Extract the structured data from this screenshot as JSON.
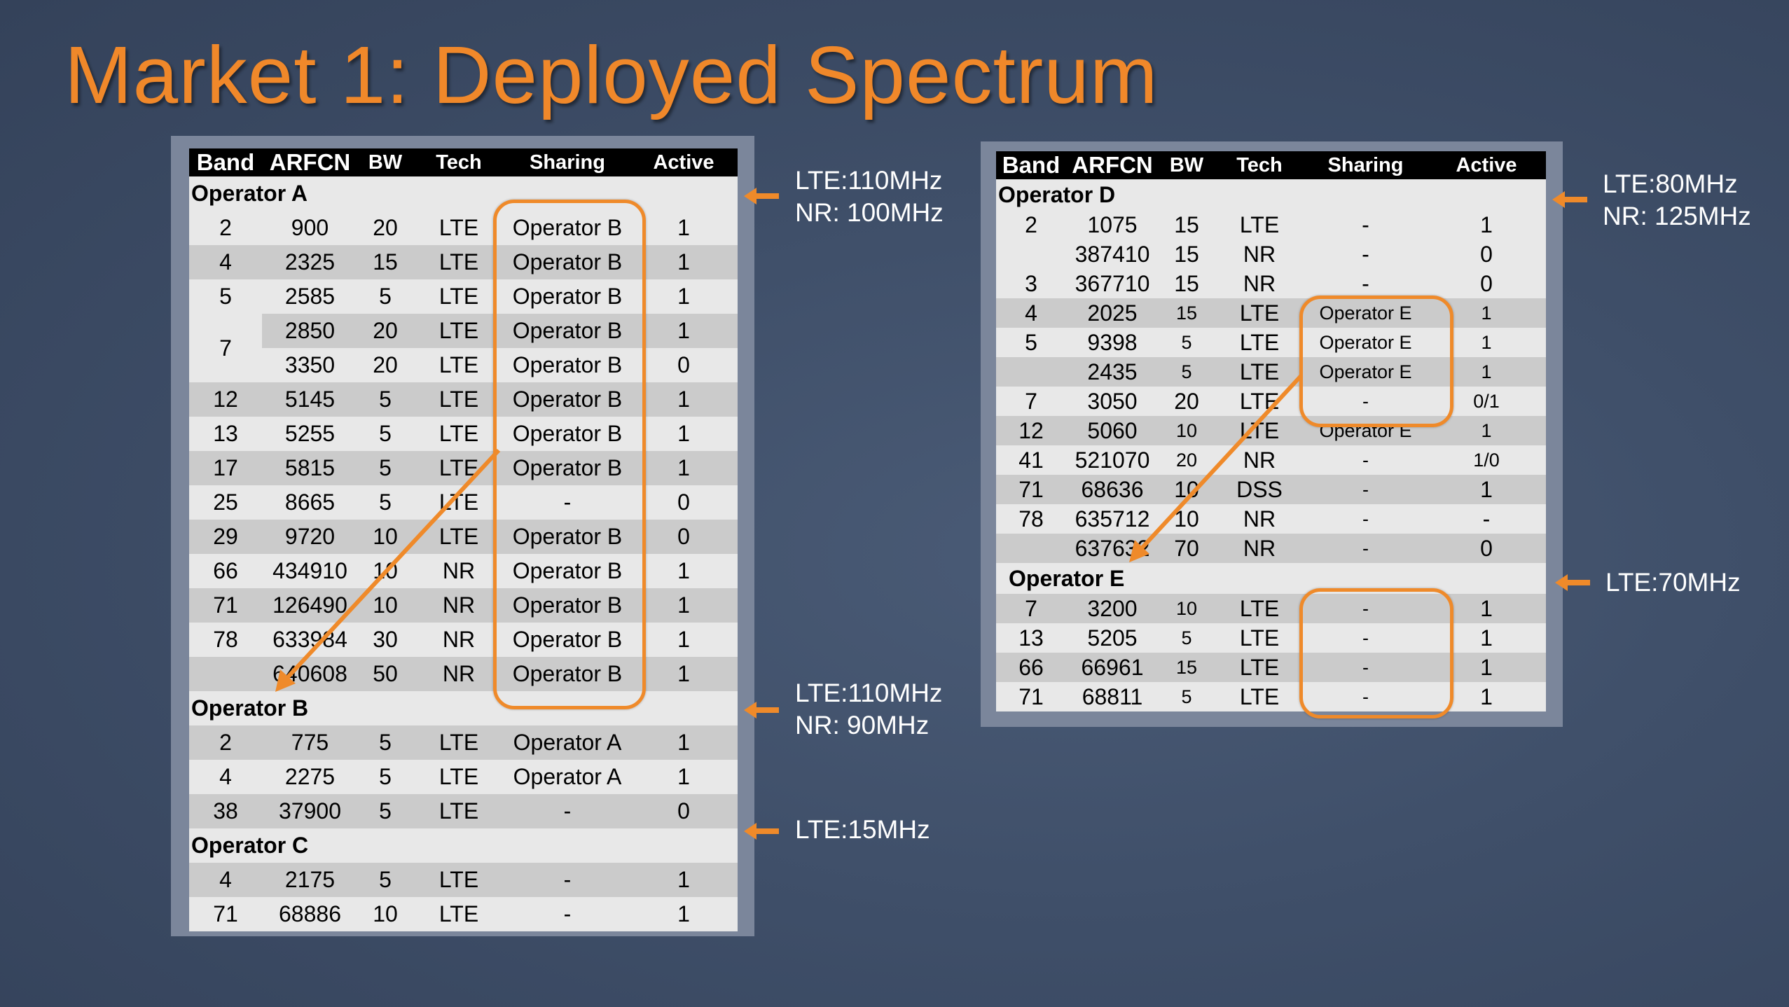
{
  "title": "Market 1: Deployed Spectrum",
  "colors": {
    "accent": "#f0882a",
    "background": "#3f4f69",
    "row_dark": "#cbcbcb",
    "row_light": "#e8e8e8"
  },
  "headers": [
    "Band",
    "ARFCN",
    "BW",
    "Tech",
    "Sharing",
    "Active"
  ],
  "left_table": {
    "operator_a": {
      "name": "Operator A",
      "rows": [
        [
          "2",
          "900",
          "20",
          "LTE",
          "Operator B",
          "1"
        ],
        [
          "4",
          "2325",
          "15",
          "LTE",
          "Operator B",
          "1"
        ],
        [
          "5",
          "2585",
          "5",
          "LTE",
          "Operator B",
          "1"
        ],
        [
          "7",
          "2850",
          "20",
          "LTE",
          "Operator B",
          "1"
        ],
        [
          "",
          "3350",
          "20",
          "LTE",
          "Operator B",
          "0"
        ],
        [
          "12",
          "5145",
          "5",
          "LTE",
          "Operator B",
          "1"
        ],
        [
          "13",
          "5255",
          "5",
          "LTE",
          "Operator B",
          "1"
        ],
        [
          "17",
          "5815",
          "5",
          "LTE",
          "Operator B",
          "1"
        ],
        [
          "25",
          "8665",
          "5",
          "LTE",
          "-",
          "0"
        ],
        [
          "29",
          "9720",
          "10",
          "LTE",
          "Operator B",
          "0"
        ],
        [
          "66",
          "434910",
          "10",
          "NR",
          "Operator B",
          "1"
        ],
        [
          "71",
          "126490",
          "10",
          "NR",
          "Operator B",
          "1"
        ],
        [
          "78",
          "633984",
          "30",
          "NR",
          "Operator B",
          "1"
        ],
        [
          "",
          "640608",
          "50",
          "NR",
          "Operator B",
          "1"
        ]
      ]
    },
    "operator_b": {
      "name": "Operator B",
      "rows": [
        [
          "2",
          "775",
          "5",
          "LTE",
          "Operator A",
          "1"
        ],
        [
          "4",
          "2275",
          "5",
          "LTE",
          "Operator A",
          "1"
        ],
        [
          "38",
          "37900",
          "5",
          "LTE",
          "-",
          "0"
        ]
      ]
    },
    "operator_c": {
      "name": "Operator C",
      "rows": [
        [
          "4",
          "2175",
          "5",
          "LTE",
          "-",
          "1"
        ],
        [
          "71",
          "68886",
          "10",
          "LTE",
          "-",
          "1"
        ]
      ]
    }
  },
  "right_table": {
    "operator_d": {
      "name": "Operator D",
      "rows": [
        [
          "2",
          "1075",
          "15",
          "LTE",
          "-",
          "1"
        ],
        [
          "",
          "387410",
          "15",
          "NR",
          "-",
          "0"
        ],
        [
          "3",
          "367710",
          "15",
          "NR",
          "-",
          "0"
        ],
        [
          "4",
          "2025",
          "15",
          "LTE",
          "Operator E",
          "1"
        ],
        [
          "5",
          "9398",
          "5",
          "LTE",
          "Operator E",
          "1"
        ],
        [
          "",
          "2435",
          "5",
          "LTE",
          "Operator E",
          "1"
        ],
        [
          "7",
          "3050",
          "20",
          "LTE",
          "-",
          "0/1"
        ],
        [
          "12",
          "5060",
          "10",
          "LTE",
          "Operator E",
          "1"
        ],
        [
          "41",
          "521070",
          "20",
          "NR",
          "-",
          "1/0"
        ],
        [
          "71",
          "68636",
          "10",
          "DSS",
          "-",
          "1"
        ],
        [
          "78",
          "635712",
          "10",
          "NR",
          "-",
          "-"
        ],
        [
          "",
          "637632",
          "70",
          "NR",
          "-",
          "0"
        ]
      ]
    },
    "operator_e": {
      "name": "Operator E",
      "rows": [
        [
          "7",
          "3200",
          "10",
          "LTE",
          "-",
          "1"
        ],
        [
          "13",
          "5205",
          "5",
          "LTE",
          "-",
          "1"
        ],
        [
          "66",
          "66961",
          "15",
          "LTE",
          "-",
          "1"
        ],
        [
          "71",
          "68811",
          "5",
          "LTE",
          "-",
          "1"
        ]
      ]
    }
  },
  "annotations": {
    "op_a": [
      "LTE:110MHz",
      "NR: 100MHz"
    ],
    "op_b": [
      "LTE:110MHz",
      "NR: 90MHz"
    ],
    "op_c": [
      "LTE:15MHz"
    ],
    "op_d": [
      "LTE:80MHz",
      "NR: 125MHz"
    ],
    "op_e": [
      "LTE:70MHz"
    ]
  }
}
